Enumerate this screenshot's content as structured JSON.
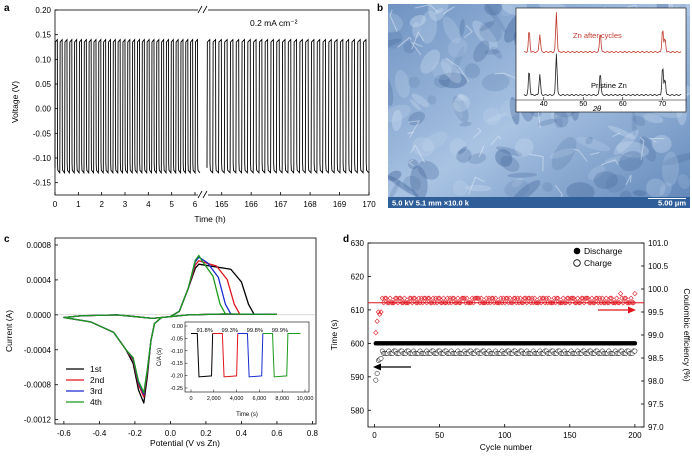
{
  "panels": {
    "a": {
      "letter": "a"
    },
    "b": {
      "letter": "b"
    },
    "c": {
      "letter": "c"
    },
    "d": {
      "letter": "d"
    }
  },
  "chart_data": [
    {
      "id": "a",
      "type": "line",
      "xlabel": "Time (h)",
      "ylabel": "Voltage (V)",
      "annotation": "0.2 mA cm⁻²",
      "xticks_left": [
        "0",
        "1",
        "2",
        "3",
        "4",
        "5",
        "6"
      ],
      "xticks_right": [
        "165",
        "166",
        "167",
        "168",
        "169",
        "170"
      ],
      "xlim_left": [
        0,
        6
      ],
      "xlim_right": [
        164.5,
        170
      ],
      "yticks": [
        "-0.15",
        "-0.10",
        "-0.05",
        "0.00",
        "0.05",
        "0.10",
        "0.15",
        "0.20"
      ],
      "ylim": [
        -0.175,
        0.2
      ],
      "cycles_per_hour": 5,
      "charge_plateau": 0.14,
      "discharge_plateau": -0.13,
      "color": "#000000"
    },
    {
      "id": "b_inset",
      "type": "line",
      "xlabel": "2θ",
      "xticks": [
        "40",
        "50",
        "60",
        "70"
      ],
      "xlim": [
        35,
        75
      ],
      "series": [
        {
          "name": "Zn after cycles",
          "color": "#c0392b",
          "peaks": [
            [
              36.3,
              0.55
            ],
            [
              39.0,
              0.45
            ],
            [
              43.2,
              1.0
            ],
            [
              54.3,
              0.5
            ],
            [
              70.1,
              0.6
            ],
            [
              70.7,
              0.35
            ]
          ]
        },
        {
          "name": "Pristine Zn",
          "color": "#222222",
          "peaks": [
            [
              36.3,
              0.6
            ],
            [
              39.0,
              0.5
            ],
            [
              43.2,
              1.0
            ],
            [
              54.3,
              0.55
            ],
            [
              70.1,
              0.7
            ],
            [
              70.7,
              0.4
            ]
          ]
        }
      ],
      "sem_label_left": "5.0 kV 5.1 mm ×10.0 k",
      "sem_label_right": "5.00 μm"
    },
    {
      "id": "c",
      "type": "line",
      "xlabel": "Potential (V vs Zn)",
      "ylabel": "Current (A)",
      "xticks": [
        "-0.6",
        "-0.4",
        "-0.2",
        "0.0",
        "0.2",
        "0.4",
        "0.6",
        "0.8"
      ],
      "xlim": [
        -0.65,
        0.82
      ],
      "yticks": [
        "-0.0012",
        "-0.0008",
        "-0.0004",
        "0.0000",
        "0.0004",
        "0.0008"
      ],
      "ylim": [
        -0.00125,
        0.00088
      ],
      "series": [
        {
          "name": "1st",
          "color": "#000000",
          "cathodic_peak": -0.00101,
          "anodic_peak": 0.00058,
          "anodic_end": 0.44
        },
        {
          "name": "2nd",
          "color": "#e0141e",
          "cathodic_peak": -0.00094,
          "anodic_peak": 0.00062,
          "anodic_end": 0.36
        },
        {
          "name": "3rd",
          "color": "#1a2bd0",
          "cathodic_peak": -0.00091,
          "anodic_peak": 0.00066,
          "anodic_end": 0.31
        },
        {
          "name": "4th",
          "color": "#1b9a1b",
          "cathodic_peak": -0.00089,
          "anodic_peak": 0.00068,
          "anodic_end": 0.28
        }
      ],
      "inset": {
        "xlabel": "Time (s)",
        "ylabel": "C/A (s)",
        "xticks": [
          "0",
          "2,000",
          "4,000",
          "6,000",
          "8,000",
          "10,000"
        ],
        "xlim": [
          0,
          10000
        ],
        "yticks": [
          "-0.25",
          "-0.20",
          "-0.15",
          "-0.10",
          "-0.05",
          "0.00"
        ],
        "ylim": [
          -0.25,
          0.0
        ],
        "efficiencies": [
          "91.8%",
          "99.3%",
          "99.8%",
          "99.9%"
        ],
        "segments": [
          {
            "color": "#000000",
            "start": 700,
            "end": 1900
          },
          {
            "color": "#e0141e",
            "start": 2900,
            "end": 4100
          },
          {
            "color": "#1a2bd0",
            "start": 5100,
            "end": 6300
          },
          {
            "color": "#1b9a1b",
            "start": 7300,
            "end": 8500
          }
        ],
        "plateau": -0.205
      }
    },
    {
      "id": "d",
      "type": "scatter",
      "xlabel": "Cycle number",
      "ylabel": "Time (s)",
      "ylabel_right": "Coulombic efficiency (%)",
      "xticks": [
        "0",
        "50",
        "100",
        "150",
        "200"
      ],
      "xlim": [
        -5,
        207
      ],
      "yticks": [
        "580",
        "590",
        "600",
        "610",
        "620",
        "630"
      ],
      "ylim": [
        575,
        630
      ],
      "yticks_right": [
        "97.0",
        "97.5",
        "98.0",
        "98.5",
        "99.0",
        "99.5",
        "100.0",
        "100.5",
        "101.0"
      ],
      "ylim_right": [
        97.0,
        101.0
      ],
      "legend": [
        "Discharge",
        "Charge"
      ],
      "discharge_value": 600,
      "charge_value": 597,
      "efficiency_value": 99.7,
      "cycles": 200
    }
  ]
}
